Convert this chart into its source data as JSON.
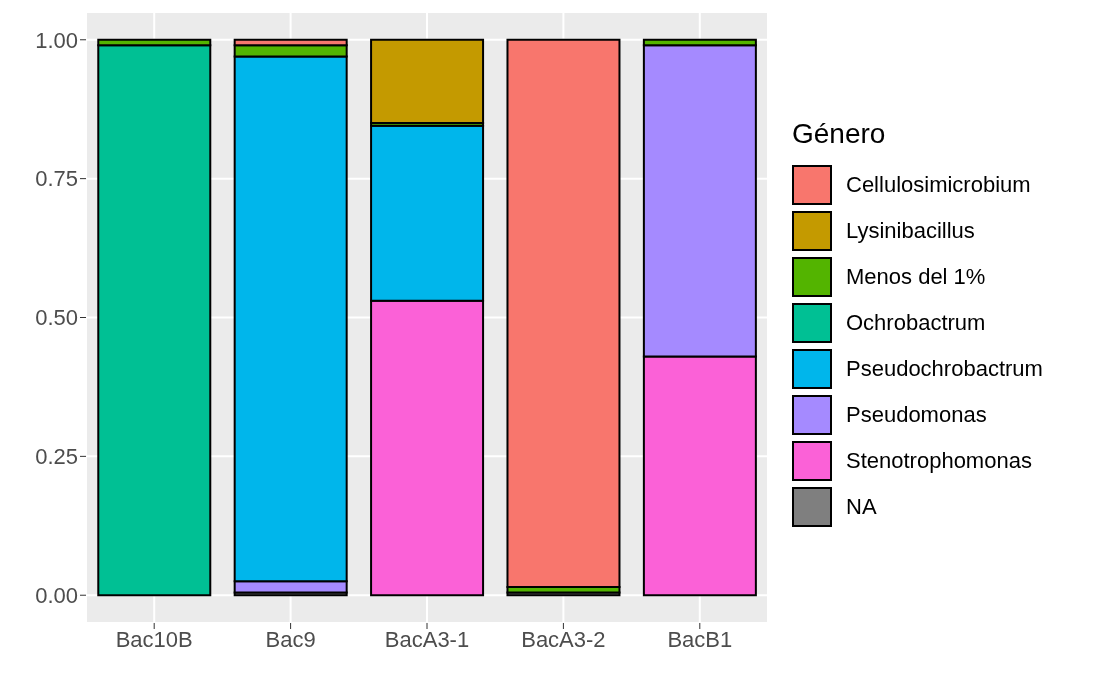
{
  "chart_data": {
    "type": "bar",
    "stacked": true,
    "legend_title": "Género",
    "legend": "right",
    "grid": true,
    "categories": [
      "Bac10B",
      "Bac9",
      "BacA3-1",
      "BacA3-2",
      "BacB1"
    ],
    "ylim": [
      -0.05,
      1.05
    ],
    "yticks": [
      {
        "value": 0,
        "label": "0.00"
      },
      {
        "value": 0.25,
        "label": "0.25"
      },
      {
        "value": 0.5,
        "label": "0.50"
      },
      {
        "value": 0.75,
        "label": "0.75"
      },
      {
        "value": 1,
        "label": "1.00"
      }
    ],
    "series": [
      {
        "name": "NA",
        "color": "#7f7f7f",
        "values": [
          0,
          0.005,
          0,
          0.005,
          0
        ]
      },
      {
        "name": "Stenotrophomonas",
        "color": "#fb61d7",
        "values": [
          0,
          0,
          0.53,
          0,
          0.43
        ]
      },
      {
        "name": "Pseudomonas",
        "color": "#a58aff",
        "values": [
          0,
          0.02,
          0,
          0,
          0.56
        ]
      },
      {
        "name": "Pseudochrobactrum",
        "color": "#00b6eb",
        "values": [
          0,
          0.945,
          0.315,
          0,
          0
        ]
      },
      {
        "name": "Ochrobactrum",
        "color": "#00c094",
        "values": [
          0.99,
          0,
          0,
          0,
          0
        ]
      },
      {
        "name": "Menos del 1%",
        "color": "#53b400",
        "values": [
          0.01,
          0.02,
          0.005,
          0.01,
          0.01
        ]
      },
      {
        "name": "Lysinibacillus",
        "color": "#c49a00",
        "values": [
          0,
          0,
          0.15,
          0,
          0
        ]
      },
      {
        "name": "Cellulosimicrobium",
        "color": "#f8766d",
        "values": [
          0,
          0.01,
          0,
          0.985,
          0
        ]
      }
    ]
  }
}
